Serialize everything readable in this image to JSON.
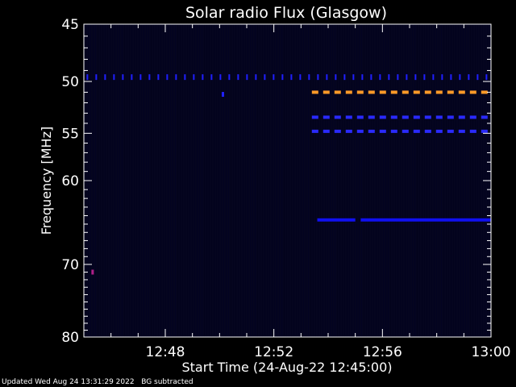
{
  "chart_data": {
    "type": "heatmap",
    "title": "Solar radio Flux (Glasgow)",
    "ylabel": "Frequency [MHz]",
    "xlabel": "Start Time (24-Aug-22 12:45:00)",
    "x_unit": "minutes after 12:45:00",
    "xlim": [
      0,
      15
    ],
    "ylim": [
      45,
      80
    ],
    "y_ticks": [
      45,
      50,
      55,
      60,
      70,
      80
    ],
    "y_tick_labels": [
      "45",
      "50",
      "55",
      "60",
      "70",
      "80"
    ],
    "x_ticks": [
      3,
      7,
      11,
      15
    ],
    "x_tick_labels": [
      "12:48",
      "12:52",
      "12:56",
      "13:00"
    ],
    "background_color": "#05051f",
    "emission_bands": [
      {
        "freq": 49.6,
        "t_start": 0.1,
        "t_end": 15,
        "style": "periodic",
        "color": "#1f1fff"
      },
      {
        "freq": 51.0,
        "t_start": 8.4,
        "t_end": 15,
        "style": "dashed",
        "color": "#ff9a28"
      },
      {
        "freq": 53.4,
        "t_start": 8.4,
        "t_end": 15,
        "style": "dashed",
        "color": "#2a2aff"
      },
      {
        "freq": 54.8,
        "t_start": 8.4,
        "t_end": 15,
        "style": "dashed",
        "color": "#2a2aff"
      },
      {
        "freq": 64.5,
        "t_start": 8.6,
        "t_end": 10.0,
        "style": "solid",
        "color": "#1010f0"
      },
      {
        "freq": 64.5,
        "t_start": 10.2,
        "t_end": 15,
        "style": "solid",
        "color": "#1010f0"
      }
    ],
    "spots": [
      {
        "freq": 71.0,
        "t": 0.1,
        "color": "#b0208a"
      },
      {
        "freq": 51.2,
        "t": 4.9,
        "color": "#2020ff"
      }
    ]
  },
  "footer": {
    "updated": "Updated Wed Aug 24 13:31:29 2022",
    "note": "BG subtracted"
  }
}
